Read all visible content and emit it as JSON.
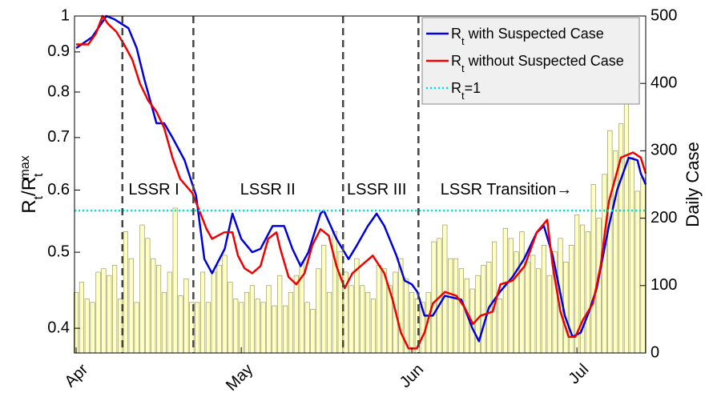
{
  "chart_data": {
    "type": "combo",
    "ylabel": [
      {
        "text": "R"
      },
      {
        "text": "t",
        "shift": "sub"
      },
      {
        "text": "/R"
      },
      {
        "text": "t",
        "shift": "sub"
      },
      {
        "text": "max",
        "shift": "super"
      }
    ],
    "y2label": "Daily Case",
    "xlim": [
      -0.3,
      103.5
    ],
    "xticks": [
      {
        "value": 0,
        "label": "Apr"
      },
      {
        "value": 30,
        "label": "May"
      },
      {
        "value": 61,
        "label": "Jun"
      },
      {
        "value": 91,
        "label": "Jul"
      }
    ],
    "ylim": [
      0.372,
      1
    ],
    "yscale": "log",
    "yticks": [
      0.4,
      0.5,
      0.6,
      0.7,
      0.8,
      0.9,
      1
    ],
    "y2lim": [
      0,
      500
    ],
    "y2ticks": [
      0,
      100,
      200,
      300,
      400,
      500
    ],
    "grid": false,
    "legend": "upper right",
    "vlines": [
      8.4,
      21.3,
      48.5,
      62.2
    ],
    "vline_color": "#444444",
    "annotations": [
      {
        "text": "LSSR I",
        "x": 9.5,
        "y": 0.6
      },
      {
        "text": "LSSR II",
        "x": 29.8,
        "y": 0.6
      },
      {
        "text": "LSSR III",
        "x": 49.2,
        "y": 0.6
      },
      {
        "text": "LSSR Transition→",
        "x": 66.2,
        "y": 0.6
      }
    ],
    "series": [
      {
        "type": "bar",
        "axis": "y2",
        "color": "#ffff99",
        "x": [
          0,
          1,
          2,
          3,
          4,
          5,
          6,
          7,
          8,
          9,
          10,
          11,
          12,
          13,
          14,
          15,
          16,
          17,
          18,
          19,
          20,
          21,
          22,
          23,
          24,
          25,
          26,
          27,
          28,
          29,
          30,
          31,
          32,
          33,
          34,
          35,
          36,
          37,
          38,
          39,
          40,
          41,
          42,
          43,
          44,
          45,
          46,
          47,
          48,
          49,
          50,
          51,
          52,
          53,
          54,
          55,
          56,
          57,
          58,
          59,
          60,
          61,
          62,
          63,
          64,
          65,
          66,
          67,
          68,
          69,
          70,
          71,
          72,
          73,
          74,
          75,
          76,
          77,
          78,
          79,
          80,
          81,
          82,
          83,
          84,
          85,
          86,
          87,
          88,
          89,
          90,
          91,
          92,
          93,
          94,
          95,
          96,
          97,
          98,
          99,
          100,
          101,
          102,
          103
        ],
        "values": [
          90,
          105,
          80,
          75,
          120,
          125,
          115,
          130,
          80,
          180,
          140,
          75,
          190,
          170,
          140,
          130,
          90,
          120,
          215,
          85,
          110,
          75,
          75,
          120,
          75,
          120,
          130,
          145,
          105,
          80,
          75,
          90,
          100,
          80,
          75,
          100,
          70,
          115,
          70,
          90,
          115,
          135,
          75,
          65,
          125,
          160,
          90,
          180,
          150,
          120,
          100,
          140,
          100,
          90,
          80,
          130,
          125,
          100,
          120,
          140,
          110,
          90,
          80,
          75,
          90,
          165,
          170,
          190,
          140,
          140,
          125,
          110,
          95,
          115,
          130,
          135,
          165,
          80,
          185,
          170,
          150,
          180,
          135,
          145,
          125,
          160,
          115,
          150,
          170,
          135,
          160,
          205,
          190,
          180,
          250,
          200,
          265,
          330,
          300,
          340,
          375,
          290,
          240,
          260
        ]
      },
      {
        "type": "line",
        "name": {
          "base": "R",
          "sub": "t",
          "rest": " with Suspected Case"
        },
        "color": "#0000dd",
        "x": [
          0,
          2.9,
          5.5,
          7,
          9.5,
          11,
          12.4,
          14.6,
          16,
          17.5,
          19.7,
          21.8,
          23.3,
          24.7,
          27,
          28.4,
          30,
          32,
          33.5,
          35.7,
          37.8,
          39.3,
          40.8,
          42.2,
          44.4,
          45,
          47.3,
          49.5,
          51,
          53,
          54.6,
          56,
          58.2,
          59.7,
          61,
          62,
          63.3,
          64.8,
          67,
          70,
          72,
          73.2,
          75,
          77,
          79.3,
          81.4,
          83.7,
          85,
          86.6,
          88.8,
          90.2,
          91.7,
          93.2,
          94.6,
          96.8,
          98.3,
          100.4,
          102,
          102.6,
          103.5
        ],
        "values": [
          0.91,
          0.94,
          1.0,
          0.99,
          0.965,
          0.91,
          0.83,
          0.73,
          0.73,
          0.7,
          0.655,
          0.59,
          0.49,
          0.47,
          0.505,
          0.56,
          0.52,
          0.5,
          0.505,
          0.54,
          0.54,
          0.505,
          0.48,
          0.5,
          0.56,
          0.565,
          0.52,
          0.49,
          0.51,
          0.54,
          0.56,
          0.54,
          0.495,
          0.46,
          0.455,
          0.445,
          0.415,
          0.415,
          0.44,
          0.435,
          0.4,
          0.385,
          0.425,
          0.445,
          0.465,
          0.49,
          0.53,
          0.54,
          0.495,
          0.415,
          0.39,
          0.395,
          0.42,
          0.45,
          0.54,
          0.6,
          0.66,
          0.655,
          0.63,
          0.61
        ]
      },
      {
        "type": "line",
        "name": {
          "base": "R",
          "sub": "t",
          "rest": " without Suspected Case"
        },
        "color": "#ee0000",
        "x": [
          0,
          2.2,
          3.6,
          4.8,
          5.8,
          7.3,
          8.7,
          10.2,
          11.6,
          13.1,
          14.6,
          16,
          17.5,
          18.9,
          21.1,
          22.6,
          23.7,
          24.7,
          25.8,
          26.9,
          28.4,
          29.4,
          30.6,
          32,
          33.5,
          34.9,
          36.4,
          37.1,
          38.6,
          40,
          41.5,
          42.9,
          44.4,
          45.9,
          47.3,
          48.8,
          50.2,
          51.7,
          53.9,
          56,
          57.5,
          59,
          60.4,
          61.9,
          63.3,
          64.8,
          67,
          69.1,
          70.6,
          72.1,
          73.5,
          75.7,
          77.1,
          79.3,
          81.5,
          83.7,
          85.6,
          86.6,
          88,
          89.5,
          90.7,
          92.1,
          93.9,
          95.3,
          96.8,
          99,
          101.2,
          102.6,
          103.5
        ],
        "values": [
          0.92,
          0.92,
          0.95,
          1.0,
          0.977,
          0.955,
          0.92,
          0.88,
          0.82,
          0.78,
          0.755,
          0.72,
          0.66,
          0.62,
          0.595,
          0.56,
          0.535,
          0.52,
          0.525,
          0.53,
          0.53,
          0.495,
          0.477,
          0.47,
          0.48,
          0.52,
          0.53,
          0.505,
          0.465,
          0.455,
          0.47,
          0.51,
          0.535,
          0.525,
          0.48,
          0.45,
          0.47,
          0.48,
          0.495,
          0.47,
          0.435,
          0.395,
          0.377,
          0.377,
          0.395,
          0.43,
          0.445,
          0.44,
          0.425,
          0.405,
          0.415,
          0.42,
          0.455,
          0.46,
          0.48,
          0.53,
          0.55,
          0.48,
          0.42,
          0.39,
          0.39,
          0.41,
          0.43,
          0.48,
          0.58,
          0.66,
          0.67,
          0.66,
          0.63
        ]
      },
      {
        "type": "hline",
        "name": {
          "base": "R",
          "sub": "t",
          "rest": "=1"
        },
        "color": "#00e0e0",
        "value": 0.565
      }
    ]
  }
}
